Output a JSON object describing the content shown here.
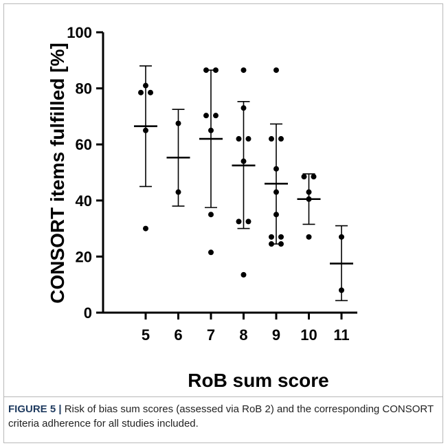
{
  "caption": {
    "label": "FIGURE 5 |",
    "text": " Risk of bias sum scores (assessed via RoB 2) and the corresponding CONSORT criteria adherence for all studies included."
  },
  "chart_data": {
    "type": "scatter",
    "xlabel": "RoB sum score",
    "ylabel": "CONSORT items fulfilled [%]",
    "ylim": [
      0,
      100
    ],
    "yticks": [
      0,
      20,
      40,
      60,
      80,
      100
    ],
    "categories": [
      "5",
      "6",
      "7",
      "8",
      "9",
      "10",
      "11"
    ],
    "groups": [
      {
        "category": "5",
        "points": [
          81,
          78.5,
          78.5,
          65,
          30
        ],
        "mean": 66.5,
        "sd_low": 45,
        "sd_high": 88
      },
      {
        "category": "6",
        "points": [
          67.5,
          43
        ],
        "mean": 55.3,
        "sd_low": 38,
        "sd_high": 72.5
      },
      {
        "category": "7",
        "points": [
          86.5,
          86.5,
          70.3,
          70.3,
          65,
          35,
          21.5
        ],
        "mean": 62,
        "sd_low": 37.5,
        "sd_high": 86.5
      },
      {
        "category": "8",
        "points": [
          86.5,
          73,
          62,
          62,
          54,
          32.5,
          32.5,
          13.5
        ],
        "mean": 52.5,
        "sd_low": 30,
        "sd_high": 75.3
      },
      {
        "category": "9",
        "points": [
          86.5,
          62,
          62,
          51.3,
          43,
          35,
          27,
          27,
          24.5,
          24.5
        ],
        "mean": 46,
        "sd_low": 24.5,
        "sd_high": 67.3
      },
      {
        "category": "10",
        "points": [
          48.5,
          48.5,
          43,
          40.5,
          27
        ],
        "mean": 40.5,
        "sd_low": 31.5,
        "sd_high": 49.5
      },
      {
        "category": "11",
        "points": [
          27,
          8
        ],
        "mean": 17.5,
        "sd_low": 4.3,
        "sd_high": 31
      }
    ]
  }
}
